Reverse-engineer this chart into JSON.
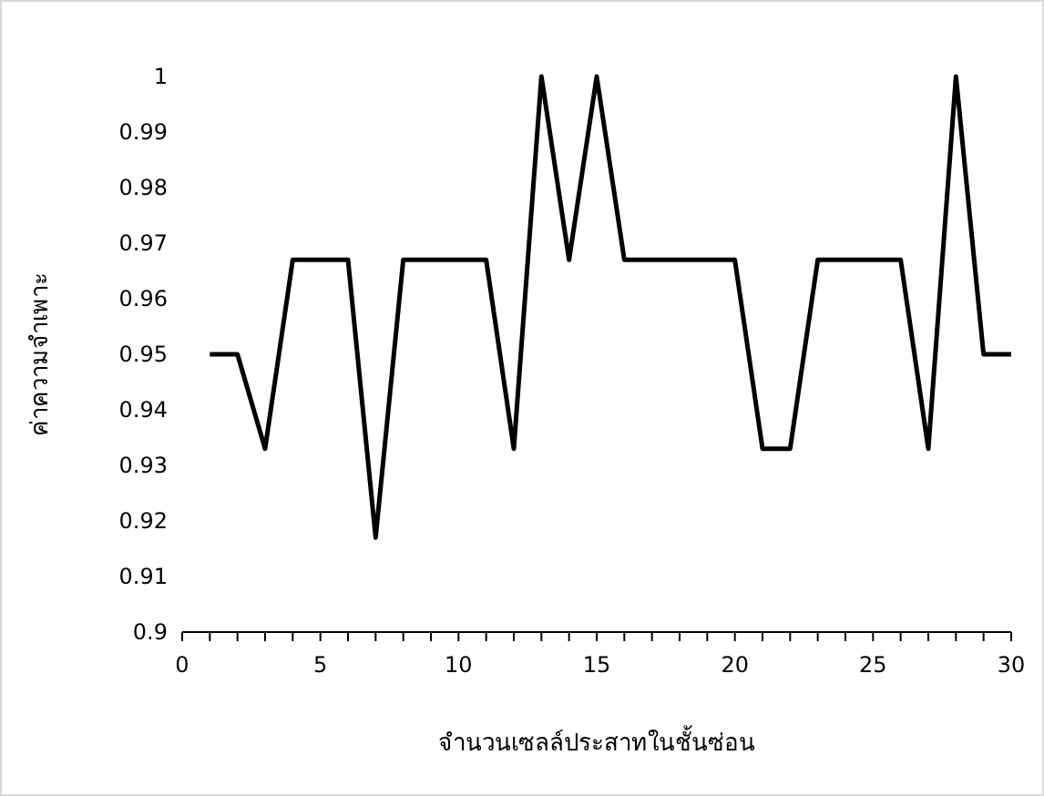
{
  "chart_data": {
    "type": "line",
    "xlabel": "จำนวนเซลล์ประสาทในชั้นซ่อน",
    "ylabel": "ค่าความจำเพาะ",
    "x": [
      1,
      2,
      3,
      4,
      5,
      6,
      7,
      8,
      9,
      10,
      11,
      12,
      13,
      14,
      15,
      16,
      17,
      18,
      19,
      20,
      21,
      22,
      23,
      24,
      25,
      26,
      27,
      28,
      29,
      30
    ],
    "series": [
      {
        "color": "#000000",
        "values": [
          0.95,
          0.95,
          0.933,
          0.967,
          0.967,
          0.967,
          0.917,
          0.967,
          0.967,
          0.967,
          0.967,
          0.933,
          1,
          0.967,
          1,
          0.967,
          0.967,
          0.967,
          0.967,
          0.967,
          0.933,
          0.933,
          0.967,
          0.967,
          0.967,
          0.967,
          0.933,
          1,
          0.95,
          0.95
        ]
      }
    ],
    "xlim": [
      0,
      30
    ],
    "ylim": [
      0.9,
      1
    ],
    "xticks": [
      0,
      {
        "value": 1,
        "label": null
      },
      {
        "value": 2,
        "label": null
      },
      {
        "value": 3,
        "label": null
      },
      {
        "value": 4,
        "label": null
      },
      5,
      {
        "value": 6,
        "label": null
      },
      {
        "value": 7,
        "label": null
      },
      {
        "value": 8,
        "label": null
      },
      {
        "value": 9,
        "label": null
      },
      10,
      {
        "value": 11,
        "label": null
      },
      {
        "value": 12,
        "label": null
      },
      {
        "value": 13,
        "label": null
      },
      {
        "value": 14,
        "label": null
      },
      15,
      {
        "value": 16,
        "label": null
      },
      {
        "value": 17,
        "label": null
      },
      {
        "value": 18,
        "label": null
      },
      {
        "value": 19,
        "label": null
      },
      20,
      {
        "value": 21,
        "label": null
      },
      {
        "value": 22,
        "label": null
      },
      {
        "value": 23,
        "label": null
      },
      {
        "value": 24,
        "label": null
      },
      25,
      {
        "value": 26,
        "label": null
      },
      {
        "value": 27,
        "label": null
      },
      {
        "value": 28,
        "label": null
      },
      {
        "value": 29,
        "label": null
      },
      30
    ],
    "yticks": [
      0.9,
      0.91,
      0.92,
      0.93,
      0.94,
      0.95,
      0.96,
      0.97,
      0.98,
      0.99,
      1
    ],
    "marker": "none",
    "line_style": "solid"
  }
}
